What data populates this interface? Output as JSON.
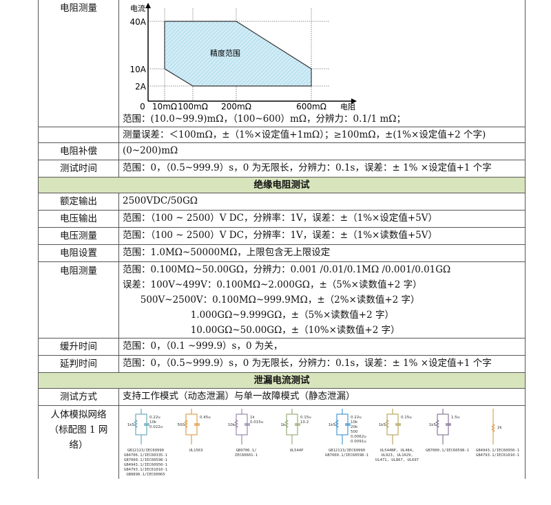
{
  "resistance_section": {
    "measure_label": "电阻测量",
    "chart_data": {
      "type": "area",
      "ylabel": "电流",
      "xlabel": "电阻",
      "x_ticks": [
        "0",
        "10mΩ",
        "100mΩ",
        "200mΩ",
        "600mΩ"
      ],
      "y_ticks": [
        "40A",
        "10A",
        "2A"
      ],
      "region_label": "精度范围",
      "region_points": [
        [
          "10mΩ",
          "40A"
        ],
        [
          "200mΩ",
          "40A"
        ],
        [
          "600mΩ",
          "10A"
        ],
        [
          "600mΩ",
          "2A"
        ],
        [
          "100mΩ",
          "2A"
        ],
        [
          "10mΩ",
          "10A"
        ]
      ],
      "fill_color": "#bfe4f2",
      "grid": "dotted"
    },
    "range_text": "范围：(10.0~99.9)mΩ，（100~600）mΩ，分辨力：0.1/1 mΩ；",
    "error_text": "测量误差：＜100mΩ，±（1%×设定值+1mΩ）；≥100mΩ，±(1%×设定值+2 个字)",
    "comp_label": "电阻补偿",
    "comp_value": "(0~200)mΩ",
    "time_label": "测试时间",
    "time_value": "范围：0，（0.5~999.9）s，0 为无限长，分辨力：0.1s，误差：± 1% ×设定值+1 个字"
  },
  "insulation_section": {
    "header": "绝缘电阻测试",
    "rows": [
      {
        "label": "额定输出",
        "value": "2500VDC/50GΩ"
      },
      {
        "label": "电压输出",
        "value": "范围：（100 ~ 2500）V DC，分辨率：1V，误差：±（1%×设定值+5V）"
      },
      {
        "label": "电压测量",
        "value": "范围：（100 ~ 2500）V DC，分辨率：1V，误差：±（1%×读数值+5V）"
      },
      {
        "label": "电阻设置",
        "value": "范围：1.0MΩ~50000MΩ，上限包含无上限设定"
      }
    ],
    "measure_label": "电阻测量",
    "measure_lines": [
      "范围：0.100MΩ~50.00GΩ，分辨力：0.001 /0.01/0.1MΩ /0.001/0.01GΩ",
      "误差：100V~499V：0.100MΩ~2.000GΩ，±（5%×读数值+2 字）",
      "      500V~2500V：0.100MΩ~999.9MΩ，±（2%×读数值+2 字）",
      "                       1.000GΩ~9.999GΩ，±（5%×读数值+2 字）",
      "                       10.00GΩ~50.00GΩ，±（10%×读数值+2 字）"
    ],
    "ramp_label": "缓升时间",
    "ramp_value": "范围：0，（0.1 ~999.9）s，0 为关，",
    "delay_label": "延判时间",
    "delay_value": "范围：0，（0.5~999.9）s，0 为无限长，分辨力：0.1s，误差：± 1% ×设定值+1 个字"
  },
  "leakage_section": {
    "header": "泄漏电流测试",
    "mode_label": "测试方式",
    "mode_value": "支持工作模式（动态泄漏）与单一故障模式（静态泄漏）",
    "network_label": "人体模拟网络（标配图 1 网络）",
    "networks": [
      {
        "color": "#6aaabb",
        "values": [
          "1k5",
          "0.22u",
          "10k",
          "0.022u"
        ],
        "caption": "GB12113/IEC60990\nGB4706.1/IEC60335-1\nGB7000.1/IEC60598-1\nGB4943.1/IEC60950-1\nGB4793.1/IEC61010-1\nGB8898.1/IEC60065"
      },
      {
        "color": "#e0a050",
        "values": [
          "500",
          "0.45u"
        ],
        "caption": "UL1563"
      },
      {
        "color": "#9a88b0",
        "values": [
          "10k",
          "1k",
          "0.015u"
        ],
        "caption": "GB9706.1/\nIEC60601-1"
      },
      {
        "color": "#9aae7a",
        "values": [
          "1k",
          "0.15u",
          "10.2"
        ],
        "caption": "UL544P"
      },
      {
        "color": "#4a9ad0",
        "values": [
          "1k5",
          "0.22u",
          "10k",
          "20k",
          "500",
          "0.0062u",
          "0.0091u"
        ],
        "caption": "GB12113/IEC60990\nGB7000.1/IEC60598-1"
      },
      {
        "color": "#b8a860",
        "values": [
          "1k5",
          "0.15u"
        ],
        "caption": "UL544NP, UL484,\nUL923, UL1029,\nUL471, UL867, UL697"
      },
      {
        "color": "#8a7a9a",
        "values": [
          "1k5",
          "1.5u"
        ],
        "caption": "GB7000.1/IEC60598-1"
      },
      {
        "color": "#e0a050",
        "values": [
          "2k"
        ],
        "caption": "GB4943.1/IEC60950-1\nGB4793.1/IEC61010-1"
      }
    ]
  }
}
